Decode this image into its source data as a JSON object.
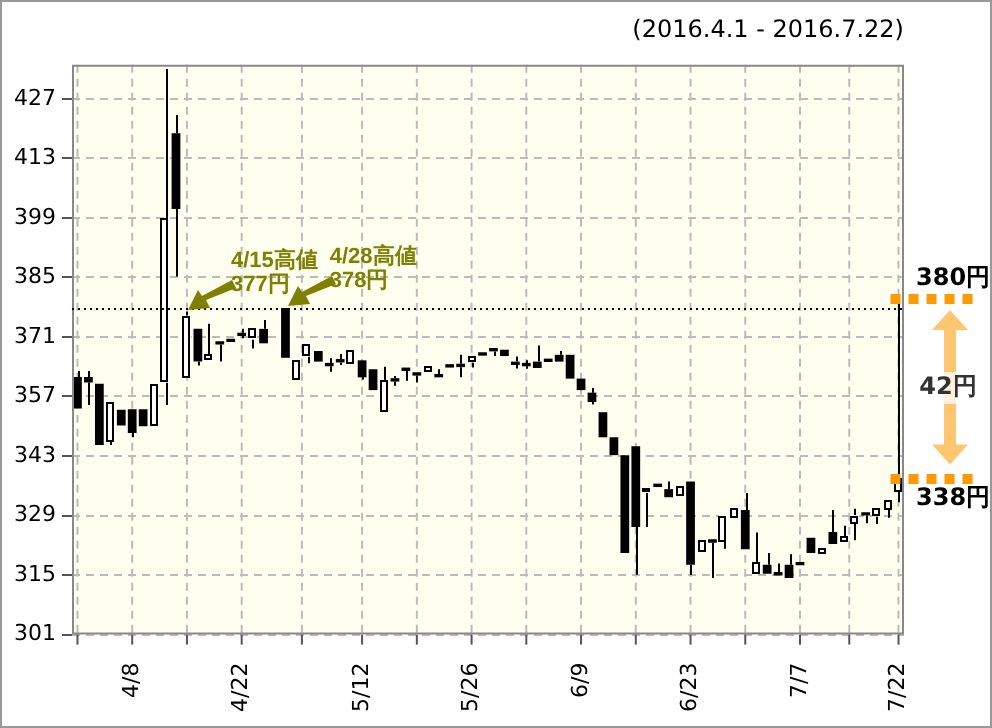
{
  "chart_data": {
    "type": "candlestick",
    "subtitle": "(2016.4.1 - 2016.7.22)",
    "categories": [
      null,
      null,
      null,
      null,
      null,
      "4/8",
      null,
      null,
      null,
      null,
      null,
      null,
      null,
      null,
      null,
      "4/22",
      null,
      null,
      null,
      null,
      null,
      null,
      null,
      null,
      null,
      null,
      "5/12",
      null,
      null,
      null,
      null,
      null,
      null,
      null,
      null,
      null,
      "5/26",
      null,
      null,
      null,
      null,
      null,
      null,
      null,
      null,
      null,
      "6/9",
      null,
      null,
      null,
      null,
      null,
      null,
      null,
      null,
      null,
      "6/23",
      null,
      null,
      null,
      null,
      null,
      null,
      null,
      null,
      null,
      "7/7",
      null,
      null,
      null,
      null,
      null,
      null,
      null,
      null,
      "7/22"
    ],
    "ohlc": [
      [
        361.6,
        363,
        354.2,
        354.2
      ],
      [
        361.6,
        363,
        355,
        360.3
      ],
      [
        360,
        360,
        345.6,
        345.6
      ],
      [
        346.5,
        356,
        345.6,
        355.7
      ],
      [
        353.9,
        354,
        350,
        350.2
      ],
      [
        354,
        354,
        347.4,
        348.4
      ],
      [
        354,
        354,
        350,
        350
      ],
      [
        350,
        360,
        350,
        360
      ],
      [
        360.3,
        434,
        355,
        399
      ],
      [
        418.9,
        423.2,
        385.2,
        401.1
      ],
      [
        361.2,
        377,
        361,
        376
      ],
      [
        372.9,
        373,
        364.3,
        365.2
      ],
      [
        365.2,
        374.1,
        365,
        366.8
      ],
      [
        370,
        370.2,
        365.2,
        369.2
      ],
      [
        370.6,
        371,
        369.5,
        369.8
      ],
      [
        372,
        372.9,
        370.7,
        371.2
      ],
      [
        370.4,
        373,
        368.3,
        372.9
      ],
      [
        372.9,
        375,
        369.5,
        369.5
      ],
      null,
      [
        377.8,
        378,
        366.1,
        366.1
      ],
      [
        361.1,
        366,
        361,
        365.7
      ],
      [
        366.4,
        369.2,
        364.8,
        369.2
      ],
      [
        367.7,
        367.7,
        365.2,
        365.2
      ],
      [
        364.9,
        366,
        362.8,
        364.1
      ],
      [
        365.8,
        367,
        364.4,
        365
      ],
      [
        364.6,
        367.7,
        364.6,
        367.7
      ],
      [
        365.5,
        365.5,
        361,
        361.5
      ],
      [
        363.4,
        363.4,
        358.5,
        358.5
      ],
      [
        353.6,
        364,
        353.6,
        360.9
      ],
      [
        361.3,
        361.8,
        359.5,
        360.5
      ],
      [
        363.8,
        364,
        360.7,
        363
      ],
      [
        362.7,
        363,
        360.3,
        361.9
      ],
      [
        362.5,
        364,
        362.2,
        364
      ],
      [
        362.3,
        363.4,
        361.5,
        361.5
      ],
      [
        364.6,
        364.6,
        363.8,
        363.8
      ],
      [
        364.7,
        366.8,
        361.5,
        363.9
      ],
      [
        365,
        366.5,
        363.8,
        366.5
      ],
      [
        367.4,
        367.4,
        366.6,
        366.6
      ],
      [
        368.4,
        368.4,
        366.5,
        367.6
      ],
      [
        368,
        368,
        366.5,
        366.5
      ],
      [
        365.2,
        366.4,
        363.6,
        364.4
      ],
      [
        364.9,
        365.5,
        363.5,
        364.1
      ],
      [
        365.2,
        369,
        363.7,
        363.7
      ],
      [
        365.9,
        365.9,
        365.1,
        365.1
      ],
      [
        366.8,
        367.7,
        365.2,
        365.2
      ],
      [
        366.8,
        366.8,
        361.2,
        361.2
      ],
      [
        361.2,
        361.2,
        358.5,
        358.5
      ],
      [
        357.9,
        359,
        355.1,
        355.7
      ],
      [
        353.3,
        353.3,
        347.4,
        347.4
      ],
      [
        347.4,
        347.4,
        343.2,
        343.2
      ],
      [
        343.2,
        343.2,
        320.2,
        320.2
      ],
      [
        345.3,
        345.3,
        315.1,
        326.3
      ],
      [
        334.3,
        335.4,
        326.3,
        335.4
      ],
      [
        336.5,
        336.5,
        335.7,
        335.7
      ],
      [
        335.2,
        337,
        333.3,
        333.3
      ],
      [
        333.3,
        335.8,
        333.3,
        335.8
      ],
      [
        337,
        337,
        315,
        317.4
      ],
      [
        320.2,
        323.2,
        320.2,
        323.2
      ],
      [
        323.4,
        323.4,
        314.3,
        322.6
      ],
      [
        323.2,
        329.1,
        321.2,
        329.1
      ],
      [
        328.5,
        330.9,
        328.5,
        330.9
      ],
      [
        330.3,
        334.3,
        321.1,
        321.1
      ],
      [
        315.3,
        325,
        315.3,
        318.1
      ],
      [
        317.4,
        320.2,
        315.3,
        315.3
      ],
      [
        315.7,
        317.7,
        314.7,
        314.9
      ],
      [
        317.4,
        319.9,
        314.3,
        314.3
      ],
      [
        318.1,
        318.1,
        317.3,
        317.3
      ],
      [
        323.8,
        324.1,
        320.2,
        320.2
      ],
      [
        319.9,
        321.4,
        319.9,
        321.4
      ],
      [
        325.1,
        330.3,
        322,
        322.3
      ],
      [
        322.6,
        326.6,
        322.6,
        324.1
      ],
      [
        327.2,
        330.6,
        323.2,
        329.1
      ],
      [
        329.8,
        329.8,
        327.2,
        329
      ],
      [
        328.8,
        330.9,
        327,
        330.9
      ],
      [
        330.3,
        332.7,
        328.5,
        332.7
      ],
      [
        334.6,
        380,
        332.1,
        337.7
      ]
    ],
    "colors": [
      "#000000",
      "#000000",
      "#000000",
      "#ffffff",
      "#000000",
      "#000000",
      "#000000",
      "#ffffff",
      "#ffffff",
      "#000000",
      "#ffffff",
      "#000000",
      "#ffffff",
      "#000000",
      "#000000",
      "#000000",
      "#ffffff",
      "#000000",
      null,
      "#000000",
      "#ffffff",
      "#ffffff",
      "#000000",
      "#000000",
      "#000000",
      "#ffffff",
      "#000000",
      "#000000",
      "#ffffff",
      "#000000",
      "#000000",
      "#000000",
      "#ffffff",
      "#000000",
      "#000000",
      "#000000",
      "#ffffff",
      "#000000",
      "#000000",
      "#000000",
      "#000000",
      "#000000",
      "#000000",
      "#000000",
      "#000000",
      "#000000",
      "#000000",
      "#000000",
      "#000000",
      "#000000",
      "#000000",
      "#000000",
      "#ffffff",
      "#000000",
      "#000000",
      "#ffffff",
      "#000000",
      "#ffffff",
      "#000000",
      "#ffffff",
      "#ffffff",
      "#000000",
      "#ffffff",
      "#000000",
      "#000000",
      "#000000",
      "#000000",
      "#000000",
      "#ffffff",
      "#000000",
      "#ffffff",
      "#ffffff",
      "#000000",
      "#ffffff",
      "#ffffff",
      "#ffffff"
    ],
    "ylim": [
      301,
      435
    ],
    "yticks": [
      301,
      315,
      329,
      343,
      357,
      371,
      385,
      399,
      413,
      427
    ],
    "grid": true,
    "ref_lines": [
      {
        "axis": "y",
        "value": 378,
        "color": "#000000",
        "line_style": "dotted"
      },
      {
        "axis": "y",
        "value": 380,
        "label": "380円",
        "color": "#ff9900",
        "line_style": "dotted"
      },
      {
        "axis": "y",
        "value": 338,
        "label": "338円",
        "color": "#ff9900",
        "line_style": "dotted"
      }
    ],
    "annotations": [
      {
        "text": "4/15高値\n377円",
        "y": 377
      },
      {
        "text": "4/28高値\n378円",
        "y": 378
      },
      "42円"
    ]
  }
}
